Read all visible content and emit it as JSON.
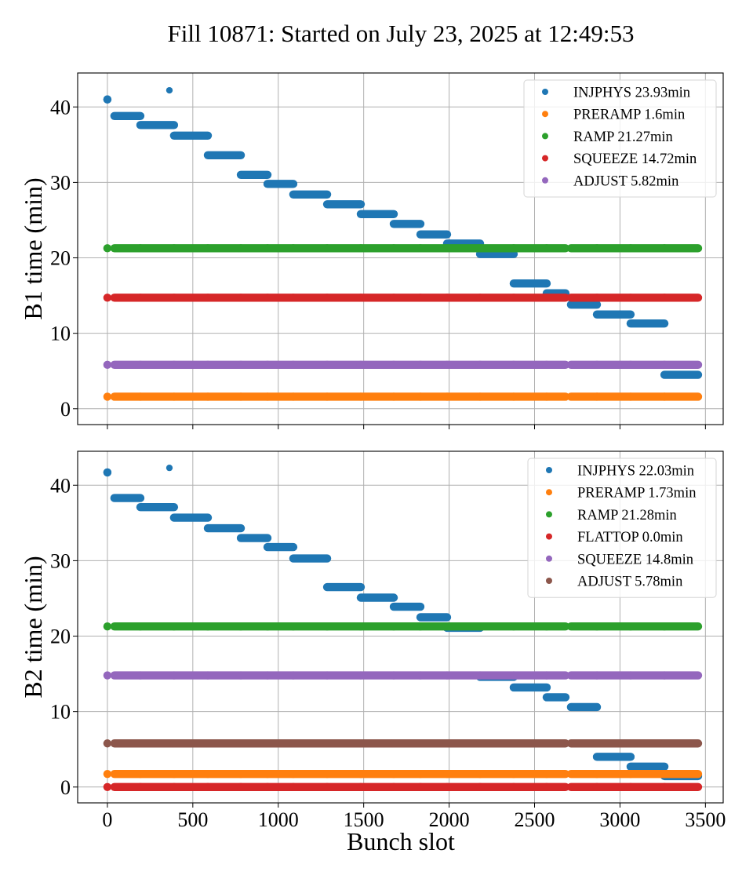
{
  "chart_data": {
    "type": "scatter",
    "title": "Fill 10871: Started on July 23, 2025 at 12:49:53",
    "xlabel": "Bunch slot",
    "xlim": [
      -174,
      3604
    ],
    "xticks": [
      0,
      500,
      1000,
      1500,
      2000,
      2500,
      3000,
      3500
    ],
    "colors": {
      "blue": "#1f77b4",
      "orange": "#ff7f0e",
      "green": "#2ca02c",
      "red": "#d62728",
      "purple": "#9467bd",
      "brown": "#8c564b"
    },
    "train_segments": [
      [
        0,
        0
      ],
      [
        41,
        193
      ],
      [
        193,
        390
      ],
      [
        390,
        588
      ],
      [
        588,
        781
      ],
      [
        781,
        937
      ],
      [
        937,
        1088
      ],
      [
        1088,
        1286
      ],
      [
        1286,
        1483
      ],
      [
        1483,
        1676
      ],
      [
        1676,
        1832
      ],
      [
        1832,
        1988
      ],
      [
        1988,
        2181
      ],
      [
        2181,
        2378
      ],
      [
        2378,
        2571
      ],
      [
        2571,
        2681
      ],
      [
        2713,
        2865
      ],
      [
        2865,
        3062
      ],
      [
        3062,
        3260
      ],
      [
        3260,
        3457
      ]
    ],
    "panels": [
      {
        "ylabel": "B1 time (min)",
        "ylim": [
          -2.1,
          44.5
        ],
        "yticks": [
          0,
          10,
          20,
          30,
          40
        ],
        "grid": true,
        "legend_position": "top-right",
        "series": [
          {
            "name": "INJPHYS 23.93min",
            "color": "#1f77b4",
            "kind": "steps",
            "points": [
              {
                "x": 0,
                "y": 41.0
              },
              {
                "x": 363,
                "y": 42.2
              }
            ],
            "values": [
              41.0,
              38.8,
              37.6,
              36.2,
              33.6,
              31.0,
              29.8,
              28.4,
              27.1,
              25.8,
              24.5,
              23.1,
              21.9,
              20.5,
              16.6,
              15.3,
              13.8,
              12.5,
              11.3,
              4.5
            ]
          },
          {
            "name": "PRERAMP 1.6min",
            "color": "#ff7f0e",
            "kind": "const",
            "value": 1.6
          },
          {
            "name": "RAMP 21.27min",
            "color": "#2ca02c",
            "kind": "const",
            "value": 21.27
          },
          {
            "name": "SQUEEZE 14.72min",
            "color": "#d62728",
            "kind": "const",
            "value": 14.72
          },
          {
            "name": "ADJUST 5.82min",
            "color": "#9467bd",
            "kind": "const",
            "value": 5.82
          }
        ]
      },
      {
        "ylabel": "B2 time (min)",
        "ylim": [
          -2.1,
          44.5
        ],
        "yticks": [
          0,
          10,
          20,
          30,
          40
        ],
        "grid": true,
        "legend_position": "top-right",
        "series": [
          {
            "name": "INJPHYS 22.03min",
            "color": "#1f77b4",
            "kind": "steps",
            "points": [
              {
                "x": 0,
                "y": 41.7
              },
              {
                "x": 363,
                "y": 42.3
              }
            ],
            "values": [
              41.7,
              38.3,
              37.1,
              35.7,
              34.3,
              33.0,
              31.8,
              30.3,
              26.5,
              25.1,
              23.9,
              22.5,
              21.1,
              14.6,
              13.2,
              11.9,
              10.6,
              4.0,
              2.7,
              1.45
            ]
          },
          {
            "name": "PRERAMP 1.73min",
            "color": "#ff7f0e",
            "kind": "const",
            "value": 1.73
          },
          {
            "name": "RAMP 21.28min",
            "color": "#2ca02c",
            "kind": "const",
            "value": 21.28
          },
          {
            "name": "FLATTOP 0.0min",
            "color": "#d62728",
            "kind": "const",
            "value": 0.0
          },
          {
            "name": "SQUEEZE 14.8min",
            "color": "#9467bd",
            "kind": "const",
            "value": 14.8
          },
          {
            "name": "ADJUST 5.78min",
            "color": "#8c564b",
            "kind": "const",
            "value": 5.78
          }
        ]
      }
    ]
  }
}
